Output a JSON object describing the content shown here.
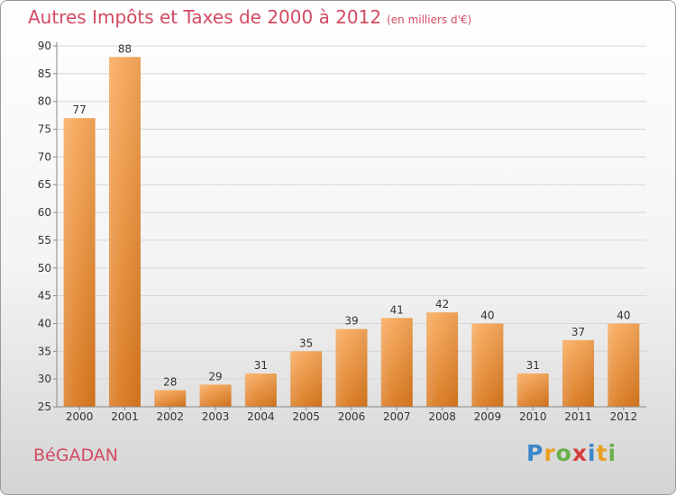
{
  "header": {
    "title": "Autres Impôts et Taxes de 2000 à 2012",
    "unit": "(en milliers d'€)"
  },
  "footer": {
    "commune": "BéGADAN",
    "logo_letters": [
      {
        "char": "P",
        "color": "#3a86c8"
      },
      {
        "char": "r",
        "color": "#e8a020"
      },
      {
        "char": "o",
        "color": "#6ab04c"
      },
      {
        "char": "x",
        "color": "#d63c3c"
      },
      {
        "char": "i",
        "color": "#3a86c8"
      },
      {
        "char": "t",
        "color": "#e8a020"
      },
      {
        "char": "i",
        "color": "#6ab04c"
      }
    ]
  },
  "chart_data": {
    "type": "bar",
    "title": "Autres Impôts et Taxes de 2000 à 2012",
    "subtitle": "(en milliers d'€)",
    "categories": [
      "2000",
      "2001",
      "2002",
      "2003",
      "2004",
      "2005",
      "2006",
      "2007",
      "2008",
      "2009",
      "2010",
      "2011",
      "2012"
    ],
    "values": [
      77,
      88,
      28,
      29,
      31,
      35,
      39,
      41,
      42,
      40,
      31,
      37,
      40
    ],
    "ylim": [
      25,
      90
    ],
    "yticks": [
      25,
      30,
      35,
      40,
      45,
      50,
      55,
      60,
      65,
      70,
      75,
      80,
      85,
      90
    ],
    "grid": true,
    "bar_color_top": "#f7a85a",
    "bar_color_bottom": "#d9781e"
  }
}
